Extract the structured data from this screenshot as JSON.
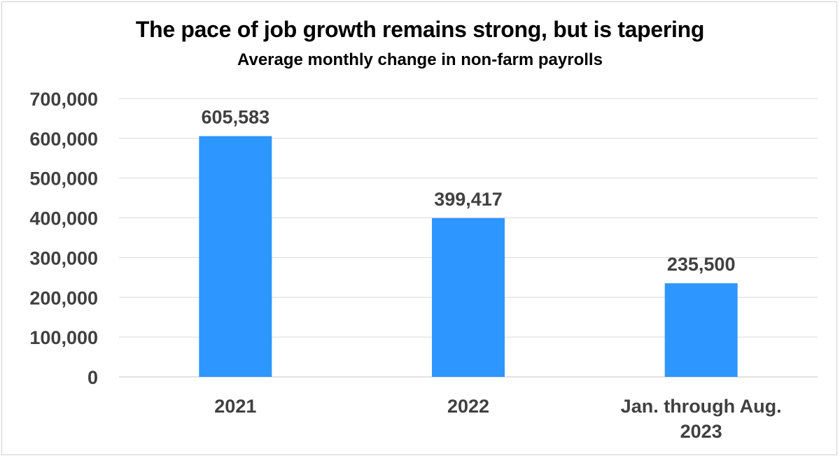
{
  "chart_data": {
    "type": "bar",
    "title": "The pace of job growth remains strong, but is tapering",
    "subtitle": "Average monthly change in non-farm payrolls",
    "categories": [
      [
        "2021"
      ],
      [
        "2022"
      ],
      [
        "Jan. through Aug.",
        "2023"
      ]
    ],
    "values": [
      605583,
      399417,
      235500
    ],
    "data_labels": [
      "605,583",
      "399,417",
      "235,500"
    ],
    "y_ticks": [
      0,
      100000,
      200000,
      300000,
      400000,
      500000,
      600000,
      700000
    ],
    "y_tick_labels": [
      "0",
      "100,000",
      "200,000",
      "300,000",
      "400,000",
      "500,000",
      "600,000",
      "700,000"
    ],
    "ylim": [
      0,
      700000
    ],
    "grid": true,
    "bar_color": "#2e96ff",
    "gridline_color": "#d9d9d9"
  }
}
